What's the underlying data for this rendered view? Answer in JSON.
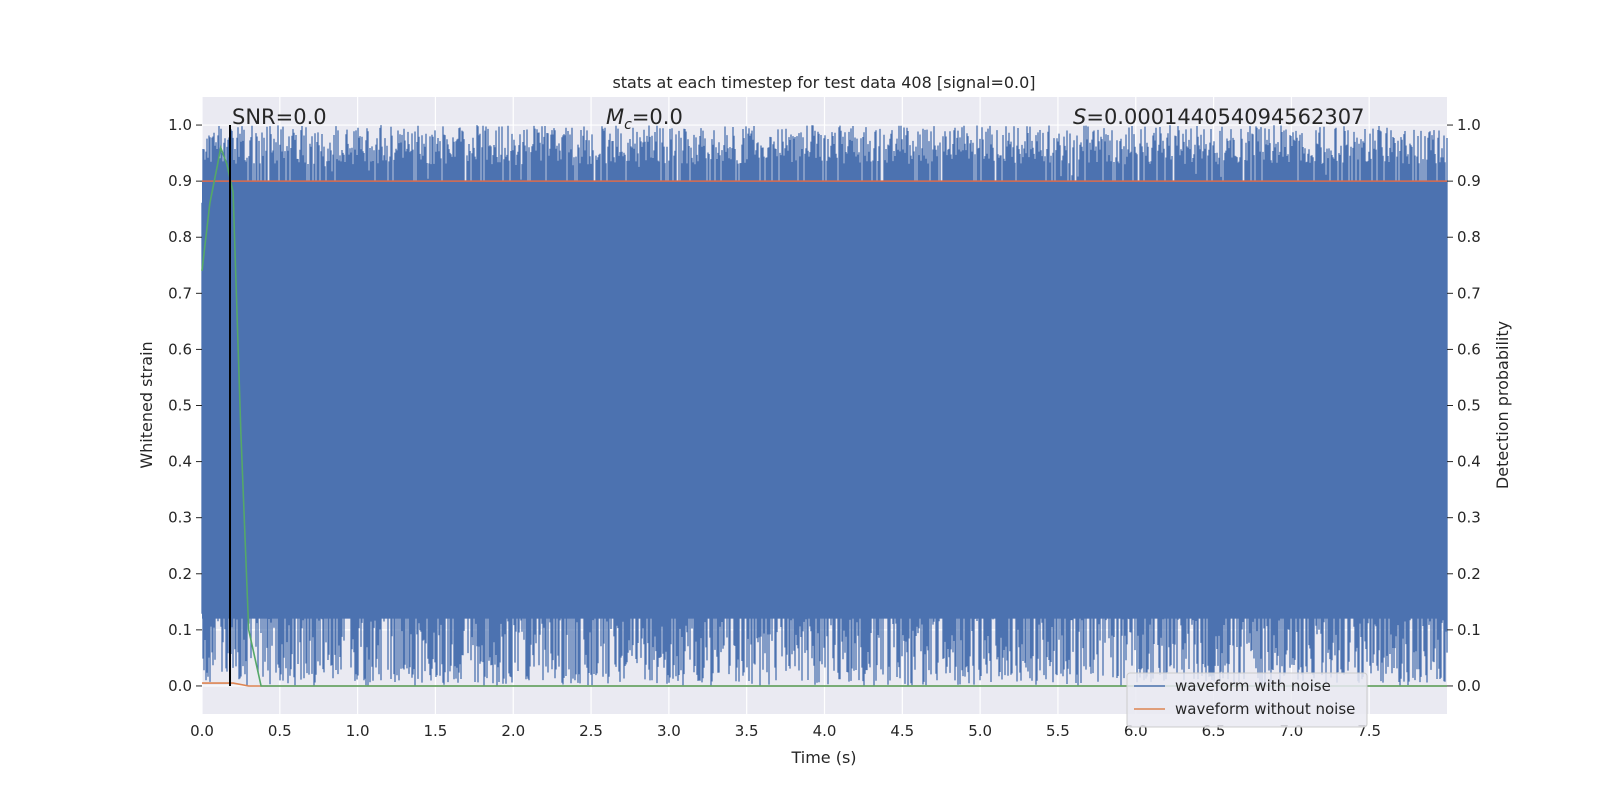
{
  "chart_data": {
    "type": "line",
    "title": "stats at each timestep for test data 408 [signal=0.0]",
    "xlabel": "Time (s)",
    "ylabel": "Whitened strain",
    "ylabel_right": "Detection probability",
    "xlim": [
      0.0,
      8.0
    ],
    "ylim": [
      -0.05,
      1.05
    ],
    "x_ticks": [
      "0.0",
      "0.5",
      "1.0",
      "1.5",
      "2.0",
      "2.5",
      "3.0",
      "3.5",
      "4.0",
      "4.5",
      "5.0",
      "5.5",
      "6.0",
      "6.5",
      "7.0",
      "7.5"
    ],
    "y_ticks": [
      "0.0",
      "0.1",
      "0.2",
      "0.3",
      "0.4",
      "0.5",
      "0.6",
      "0.7",
      "0.8",
      "0.9",
      "1.0"
    ],
    "y_ticks_right": [
      "0.0",
      "0.1",
      "0.2",
      "0.3",
      "0.4",
      "0.5",
      "0.6",
      "0.7",
      "0.8",
      "0.9",
      "1.0"
    ],
    "grid": true,
    "annotations": {
      "snr": "SNR=0.0",
      "mc_symbol": "M",
      "mc_sub": "c",
      "mc_value": "=0.0",
      "s_symbol": "S",
      "s_value": "=0.000144054094562307"
    },
    "threshold": {
      "value": 0.9,
      "color": "#dd6b4c"
    },
    "vline": {
      "x": 0.18,
      "color": "#000000"
    },
    "series": [
      {
        "name": "waveform with noise",
        "color": "#4c72b0",
        "description": "dense noisy strain oscillating between ~0.0 and 1.0",
        "envelope_low": 0.05,
        "envelope_high": 0.97
      },
      {
        "name": "waveform without noise",
        "color": "#dd8452",
        "x": [
          0.0,
          0.1,
          0.2,
          0.3,
          8.0
        ],
        "y": [
          0.005,
          0.005,
          0.005,
          0.0,
          0.0
        ]
      },
      {
        "name": "detection probability",
        "color": "#55a868",
        "x": [
          0.0,
          0.05,
          0.1,
          0.12,
          0.16,
          0.2,
          0.25,
          0.3,
          0.38,
          0.5,
          8.0
        ],
        "y": [
          0.74,
          0.86,
          0.93,
          0.96,
          0.93,
          0.88,
          0.45,
          0.1,
          0.0,
          0.0,
          0.0
        ]
      }
    ],
    "legend": {
      "placement": "lower-right",
      "entries": [
        {
          "label": "waveform with noise",
          "color": "#4c72b0"
        },
        {
          "label": "waveform without noise",
          "color": "#dd8452"
        }
      ]
    }
  }
}
